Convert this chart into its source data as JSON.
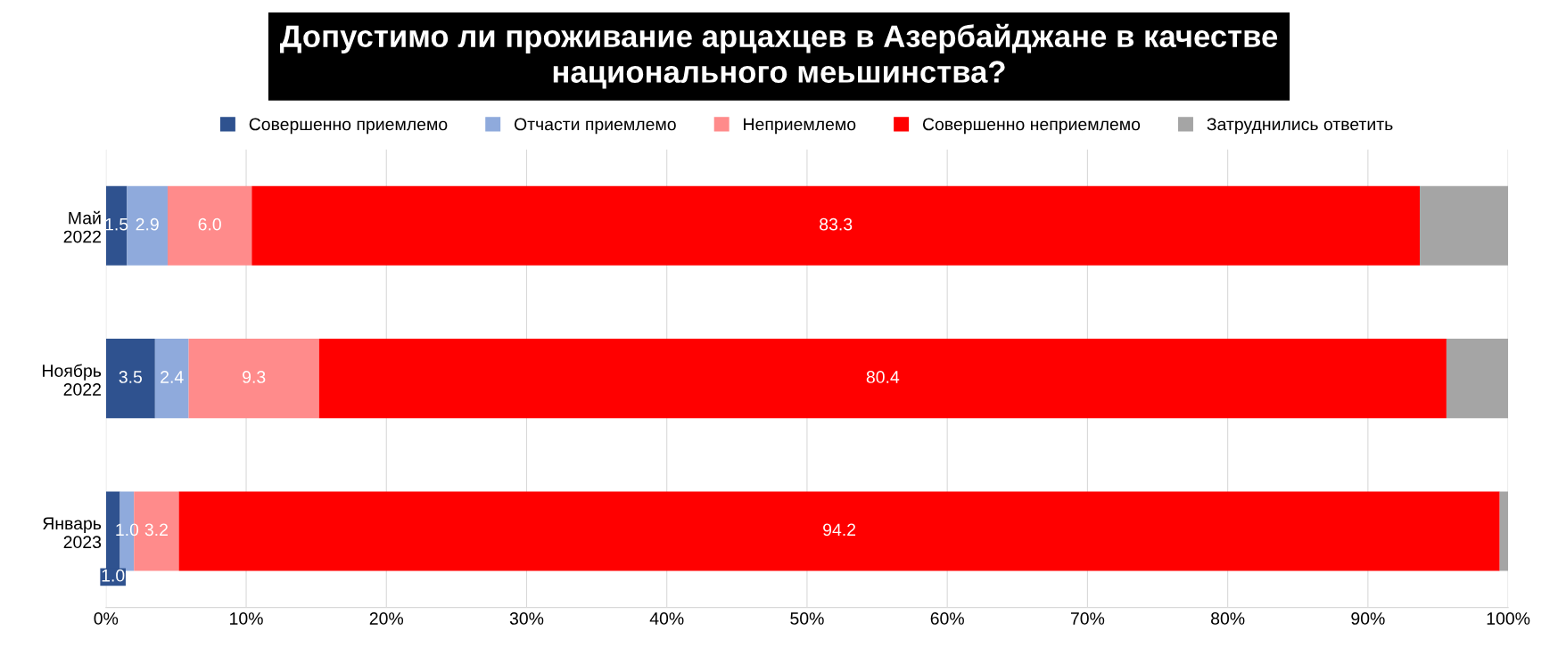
{
  "chart_data": {
    "type": "bar",
    "orientation": "horizontal",
    "stacked": true,
    "title": "Допустимо ли проживание арцахцев в Азербайджане в качестве\nнационального меьшинства?",
    "categories": [
      "Май\n2022",
      "Ноябрь\n2022",
      "Январь\n2023"
    ],
    "series": [
      {
        "name": "Совершенно приемлемо",
        "color": "#2f528f",
        "values": [
          1.5,
          3.5,
          1.0
        ],
        "value_labels": [
          "1.5",
          "3.5",
          "1.0"
        ]
      },
      {
        "name": "Отчасти приемлемо",
        "color": "#8faadc",
        "values": [
          2.9,
          2.4,
          1.0
        ],
        "value_labels": [
          "2.9",
          "2.4",
          "1.0"
        ]
      },
      {
        "name": "Неприемлемо",
        "color": "#ff8b8b",
        "values": [
          6.0,
          9.3,
          3.2
        ],
        "value_labels": [
          "6.0",
          "9.3",
          "3.2"
        ]
      },
      {
        "name": "Совершенно неприемлемо",
        "color": "#ff0000",
        "values": [
          83.3,
          80.4,
          94.2
        ],
        "value_labels": [
          "83.3",
          "80.4",
          "94.2"
        ]
      },
      {
        "name": "Затруднились ответить",
        "color": "#a5a5a5",
        "values": [
          6.3,
          4.4,
          0.6
        ],
        "value_labels": [
          null,
          null,
          null
        ]
      }
    ],
    "xlim": [
      0,
      100
    ],
    "xticks": [
      {
        "value": 0,
        "label": "0%"
      },
      {
        "value": 10,
        "label": "10%"
      },
      {
        "value": 20,
        "label": "20%"
      },
      {
        "value": 30,
        "label": "30%"
      },
      {
        "value": 40,
        "label": "40%"
      },
      {
        "value": 50,
        "label": "50%"
      },
      {
        "value": 60,
        "label": "60%"
      },
      {
        "value": 70,
        "label": "70%"
      },
      {
        "value": 80,
        "label": "80%"
      },
      {
        "value": 90,
        "label": "90%"
      },
      {
        "value": 100,
        "label": "100%"
      }
    ],
    "grid": "x",
    "legend": "top"
  }
}
